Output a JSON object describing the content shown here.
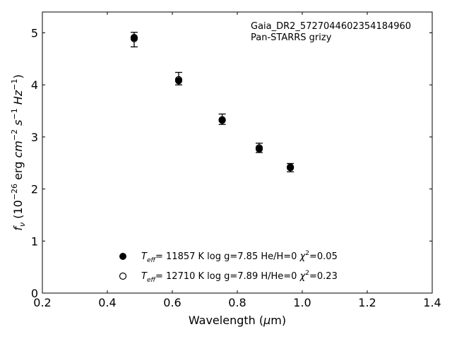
{
  "chart_data": {
    "type": "scatter",
    "title": "",
    "xlabel": "Wavelength (μm)",
    "ylabel": "fν (10⁻²⁶ erg cm⁻² s⁻¹ Hz⁻¹)",
    "xlim": [
      0.2,
      1.4
    ],
    "ylim": [
      0,
      5.4
    ],
    "xticks": [
      "0.2",
      "0.4",
      "0.6",
      "0.8",
      "1.0",
      "1.2",
      "1.4"
    ],
    "yticks": [
      "0",
      "1",
      "2",
      "3",
      "4",
      "5"
    ],
    "annotations": [
      "Gaia_DR2_5727044602354184960",
      "Pan-STARRS grizy"
    ],
    "observed": {
      "name": "Pan-STARRS grizy",
      "points": [
        {
          "x": 0.4825,
          "y": 4.87,
          "err": 0.14
        },
        {
          "x": 0.6195,
          "y": 4.12,
          "err": 0.12
        },
        {
          "x": 0.7535,
          "y": 3.34,
          "err": 0.1
        },
        {
          "x": 0.8674,
          "y": 2.79,
          "err": 0.09
        },
        {
          "x": 0.9633,
          "y": 2.41,
          "err": 0.08
        }
      ]
    },
    "series": [
      {
        "marker": "filled",
        "label": {
          "teff_sym": "T",
          "teff_sub": "eff",
          "text1": "= 11857 K  log g=7.85  He/H=0  ",
          "chi_sym": "χ",
          "chi_sup": "2",
          "text2": "=0.05"
        },
        "values": [
          4.91,
          4.08,
          3.32,
          2.77,
          2.41
        ]
      },
      {
        "marker": "open",
        "label": {
          "teff_sym": "T",
          "teff_sub": "eff",
          "text1": "= 12710 K  log g=7.89  H/He=0  ",
          "chi_sym": "χ",
          "chi_sup": "2",
          "text2": "=0.23"
        },
        "values": [
          4.89,
          4.1,
          3.33,
          2.79,
          2.42
        ]
      }
    ],
    "legend_position": "lower-center",
    "grid": false
  }
}
